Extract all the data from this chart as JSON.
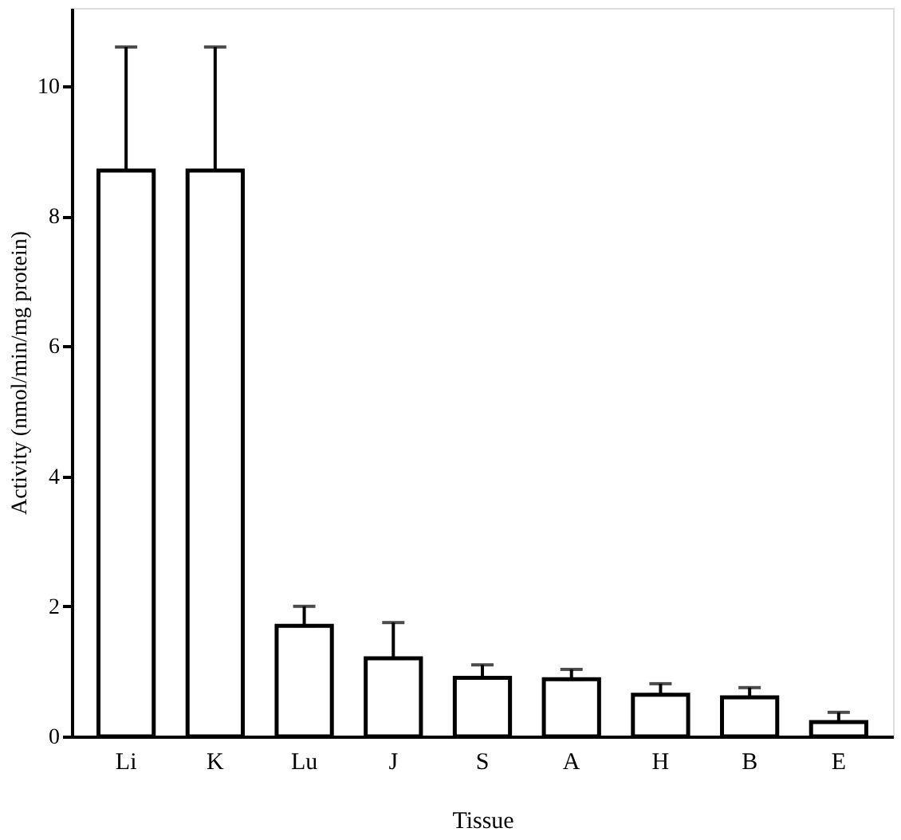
{
  "chart_data": {
    "type": "bar",
    "xlabel": "Tissue",
    "ylabel": "Activity (nmol/min/mg protein)",
    "categories": [
      "Li",
      "K",
      "Lu",
      "J",
      "S",
      "A",
      "H",
      "B",
      "E"
    ],
    "values": [
      8.7,
      8.7,
      1.7,
      1.2,
      0.9,
      0.88,
      0.64,
      0.6,
      0.22
    ],
    "errors": [
      [
        8.7,
        10.6
      ],
      [
        8.7,
        10.6
      ],
      [
        1.7,
        2.0
      ],
      [
        1.2,
        1.75
      ],
      [
        0.9,
        1.1
      ],
      [
        0.88,
        1.03
      ],
      [
        0.64,
        0.81
      ],
      [
        0.6,
        0.75
      ],
      [
        0.22,
        0.37
      ]
    ],
    "color": "#ffffff",
    "ylim": [
      0,
      11.2
    ],
    "yticks": [
      0,
      2,
      4,
      6,
      8,
      10
    ],
    "grid": false
  }
}
